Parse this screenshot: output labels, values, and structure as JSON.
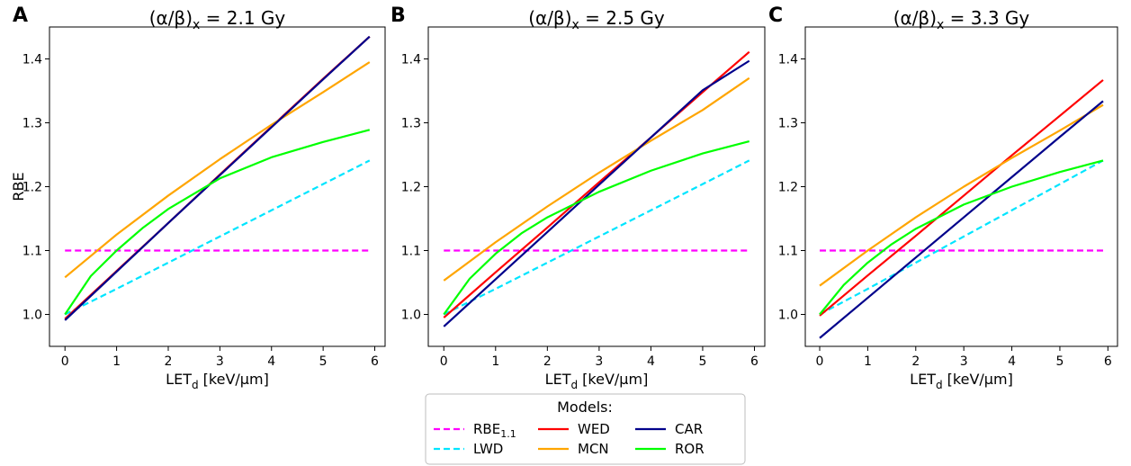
{
  "chart_data": [
    {
      "panel": "A",
      "type": "line",
      "title_prefix": "(α/β)",
      "title_sub": "x",
      "title_value": " = 2.1 Gy",
      "xlabel_main": "LET",
      "xlabel_sub": "d",
      "xlabel_rest": " [keV/µm]",
      "ylabel": "RBE",
      "xlim": [
        -0.3,
        6.2
      ],
      "ylim": [
        0.95,
        1.45
      ],
      "xticks": [
        0,
        1,
        2,
        3,
        4,
        5,
        6
      ],
      "yticks": [
        1.0,
        1.1,
        1.2,
        1.3,
        1.4
      ],
      "series": [
        {
          "name": "RBE_1.1",
          "color": "#ff00ff",
          "dash": true,
          "x": [
            0,
            5.9
          ],
          "y": [
            1.1,
            1.1
          ]
        },
        {
          "name": "LWD",
          "color": "#00e5ff",
          "dash": true,
          "x": [
            0,
            1,
            2,
            3,
            4,
            5,
            5.9
          ],
          "y": [
            1.0,
            1.04,
            1.081,
            1.122,
            1.163,
            1.204,
            1.241
          ]
        },
        {
          "name": "WED",
          "color": "#ff0000",
          "dash": false,
          "x": [
            0,
            1,
            2,
            3,
            4,
            5,
            5.9
          ],
          "y": [
            0.993,
            1.068,
            1.143,
            1.219,
            1.294,
            1.369,
            1.435
          ]
        },
        {
          "name": "MCN",
          "color": "#ffa500",
          "dash": false,
          "x": [
            0,
            1,
            2,
            3,
            4,
            5,
            5.9
          ],
          "y": [
            1.058,
            1.125,
            1.186,
            1.243,
            1.297,
            1.348,
            1.395
          ]
        },
        {
          "name": "CAR",
          "color": "#00008b",
          "dash": false,
          "x": [
            0,
            1,
            2,
            3,
            4,
            5,
            5.9
          ],
          "y": [
            0.991,
            1.067,
            1.143,
            1.218,
            1.293,
            1.368,
            1.435
          ]
        },
        {
          "name": "ROR",
          "color": "#00ff00",
          "dash": false,
          "x": [
            0,
            0.5,
            1,
            1.5,
            2,
            3,
            4,
            5,
            5.9
          ],
          "y": [
            1.0,
            1.06,
            1.1,
            1.135,
            1.165,
            1.213,
            1.246,
            1.27,
            1.289
          ]
        }
      ]
    },
    {
      "panel": "B",
      "type": "line",
      "title_prefix": "(α/β)",
      "title_sub": "x",
      "title_value": " = 2.5 Gy",
      "xlabel_main": "LET",
      "xlabel_sub": "d",
      "xlabel_rest": " [keV/µm]",
      "ylabel": "",
      "xlim": [
        -0.3,
        6.2
      ],
      "ylim": [
        0.95,
        1.45
      ],
      "xticks": [
        0,
        1,
        2,
        3,
        4,
        5,
        6
      ],
      "yticks": [
        1.0,
        1.1,
        1.2,
        1.3,
        1.4
      ],
      "series": [
        {
          "name": "RBE_1.1",
          "color": "#ff00ff",
          "dash": true,
          "x": [
            0,
            5.9
          ],
          "y": [
            1.1,
            1.1
          ]
        },
        {
          "name": "LWD",
          "color": "#00e5ff",
          "dash": true,
          "x": [
            0,
            1,
            2,
            3,
            4,
            5,
            5.9
          ],
          "y": [
            1.0,
            1.04,
            1.081,
            1.122,
            1.163,
            1.204,
            1.241
          ]
        },
        {
          "name": "WED",
          "color": "#ff0000",
          "dash": false,
          "x": [
            0,
            1,
            2,
            3,
            4,
            5,
            5.9
          ],
          "y": [
            0.995,
            1.066,
            1.136,
            1.207,
            1.277,
            1.348,
            1.411
          ]
        },
        {
          "name": "MCN",
          "color": "#ffa500",
          "dash": false,
          "x": [
            0,
            1,
            2,
            3,
            4,
            5,
            5.9
          ],
          "y": [
            1.053,
            1.113,
            1.169,
            1.222,
            1.272,
            1.32,
            1.37
          ]
        },
        {
          "name": "CAR",
          "color": "#00008b",
          "dash": false,
          "x": [
            0,
            1,
            2,
            3,
            4,
            5,
            5.9
          ],
          "y": [
            0.981,
            1.055,
            1.129,
            1.203,
            1.277,
            1.351,
            1.397
          ]
        },
        {
          "name": "ROR",
          "color": "#00ff00",
          "dash": false,
          "x": [
            0,
            0.5,
            1,
            1.5,
            2,
            3,
            4,
            5,
            5.9
          ],
          "y": [
            1.0,
            1.056,
            1.095,
            1.127,
            1.152,
            1.192,
            1.225,
            1.252,
            1.271
          ]
        }
      ]
    },
    {
      "panel": "C",
      "type": "line",
      "title_prefix": "(α/β)",
      "title_sub": "x",
      "title_value": " = 3.3 Gy",
      "xlabel_main": "LET",
      "xlabel_sub": "d",
      "xlabel_rest": " [keV/µm]",
      "ylabel": "",
      "xlim": [
        -0.3,
        6.2
      ],
      "ylim": [
        0.95,
        1.45
      ],
      "xticks": [
        0,
        1,
        2,
        3,
        4,
        5,
        6
      ],
      "yticks": [
        1.0,
        1.1,
        1.2,
        1.3,
        1.4
      ],
      "series": [
        {
          "name": "RBE_1.1",
          "color": "#ff00ff",
          "dash": true,
          "x": [
            0,
            5.9
          ],
          "y": [
            1.1,
            1.1
          ]
        },
        {
          "name": "LWD",
          "color": "#00e5ff",
          "dash": true,
          "x": [
            0,
            1,
            2,
            3,
            4,
            5,
            5.9
          ],
          "y": [
            1.0,
            1.04,
            1.081,
            1.122,
            1.163,
            1.204,
            1.241
          ]
        },
        {
          "name": "WED",
          "color": "#ff0000",
          "dash": false,
          "x": [
            0,
            1,
            2,
            3,
            4,
            5,
            5.9
          ],
          "y": [
            0.998,
            1.061,
            1.123,
            1.186,
            1.249,
            1.311,
            1.367
          ]
        },
        {
          "name": "MCN",
          "color": "#ffa500",
          "dash": false,
          "x": [
            0,
            1,
            2,
            3,
            4,
            5,
            5.9
          ],
          "y": [
            1.045,
            1.1,
            1.152,
            1.2,
            1.245,
            1.288,
            1.328
          ]
        },
        {
          "name": "CAR",
          "color": "#00008b",
          "dash": false,
          "x": [
            0,
            1,
            2,
            3,
            4,
            5,
            5.9
          ],
          "y": [
            0.963,
            1.026,
            1.089,
            1.152,
            1.215,
            1.278,
            1.334
          ]
        },
        {
          "name": "ROR",
          "color": "#00ff00",
          "dash": false,
          "x": [
            0,
            0.5,
            1,
            1.5,
            2,
            3,
            4,
            5,
            5.9
          ],
          "y": [
            1.0,
            1.046,
            1.081,
            1.11,
            1.134,
            1.172,
            1.2,
            1.223,
            1.241
          ]
        }
      ]
    }
  ],
  "legend": {
    "title": "Models:",
    "entries": [
      {
        "label": "RBE",
        "sub": "1.1",
        "color": "#ff00ff",
        "dash": true
      },
      {
        "label": "LWD",
        "sub": "",
        "color": "#00e5ff",
        "dash": true
      },
      {
        "label": "WED",
        "sub": "",
        "color": "#ff0000",
        "dash": false
      },
      {
        "label": "MCN",
        "sub": "",
        "color": "#ffa500",
        "dash": false
      },
      {
        "label": "CAR",
        "sub": "",
        "color": "#00008b",
        "dash": false
      },
      {
        "label": "ROR",
        "sub": "",
        "color": "#00ff00",
        "dash": false
      }
    ]
  }
}
